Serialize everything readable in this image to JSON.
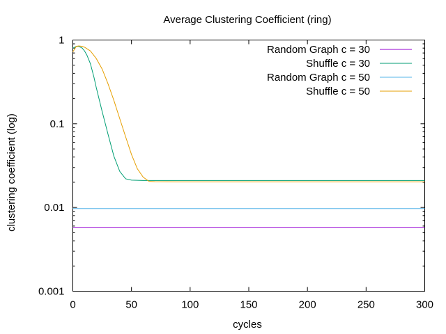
{
  "chart_data": {
    "type": "line",
    "title": "Average Clustering Coefficient (ring)",
    "xlabel": "cycles",
    "ylabel": "clustering coefficient (log)",
    "xlim": [
      0,
      300
    ],
    "ylim": [
      0.001,
      1
    ],
    "yscale": "log",
    "grid": false,
    "legend": "top-right",
    "x_ticks": [
      0,
      50,
      100,
      150,
      200,
      250,
      300
    ],
    "x_tick_labels": [
      "0",
      "50",
      "100",
      "150",
      "200",
      "250",
      "300"
    ],
    "y_ticks": [
      0.001,
      0.01,
      0.1,
      1
    ],
    "y_tick_labels": [
      "0.001",
      "0.01",
      "0.1",
      "1"
    ],
    "series": [
      {
        "name": "Random Graph c = 30",
        "color": "#9400d3",
        "x": [
          0,
          300
        ],
        "y": [
          0.0058,
          0.0058
        ]
      },
      {
        "name": "Shuffle c = 30",
        "color": "#009e73",
        "x": [
          0,
          3,
          5,
          8,
          10,
          12,
          15,
          18,
          20,
          25,
          30,
          35,
          40,
          45,
          50,
          60,
          80,
          100,
          150,
          200,
          250,
          300
        ],
        "y": [
          0.8,
          0.84,
          0.84,
          0.8,
          0.74,
          0.66,
          0.52,
          0.36,
          0.27,
          0.14,
          0.075,
          0.041,
          0.027,
          0.022,
          0.0212,
          0.021,
          0.021,
          0.021,
          0.021,
          0.021,
          0.021,
          0.021
        ]
      },
      {
        "name": "Random Graph c = 50",
        "color": "#56b4e9",
        "x": [
          0,
          300
        ],
        "y": [
          0.0097,
          0.0097
        ]
      },
      {
        "name": "Shuffle c = 50",
        "color": "#e69f00",
        "x": [
          0,
          3,
          5,
          8,
          10,
          15,
          20,
          25,
          30,
          35,
          40,
          45,
          50,
          55,
          60,
          65,
          70,
          100,
          150,
          200,
          250,
          300
        ],
        "y": [
          0.72,
          0.84,
          0.85,
          0.84,
          0.82,
          0.74,
          0.6,
          0.45,
          0.3,
          0.19,
          0.115,
          0.07,
          0.043,
          0.029,
          0.023,
          0.0205,
          0.0203,
          0.0202,
          0.0202,
          0.0202,
          0.0202,
          0.0202
        ]
      }
    ]
  }
}
